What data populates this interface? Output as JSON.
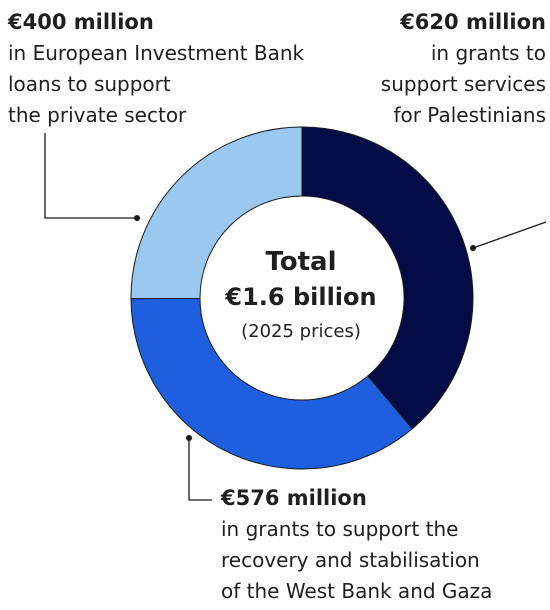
{
  "chart_data": {
    "type": "pie",
    "donut": true,
    "center": {
      "title": "Total",
      "total": "€1.6 billion",
      "note": "(2025 prices)"
    },
    "slices": [
      {
        "amount_label": "€620 million",
        "value": 620,
        "unit": "million EUR",
        "description": "in grants to|support services|for Palestinians",
        "color": "#020b45"
      },
      {
        "amount_label": "€576 million",
        "value": 576,
        "unit": "million EUR",
        "description": "in grants to support the|recovery and stabilisation|of the West Bank and Gaza",
        "color": "#1e5fe0"
      },
      {
        "amount_label": "€400 million",
        "value": 400,
        "unit": "million EUR",
        "description": "in European Investment Bank|loans to support|the private sector",
        "color": "#9ac8ee"
      }
    ]
  }
}
